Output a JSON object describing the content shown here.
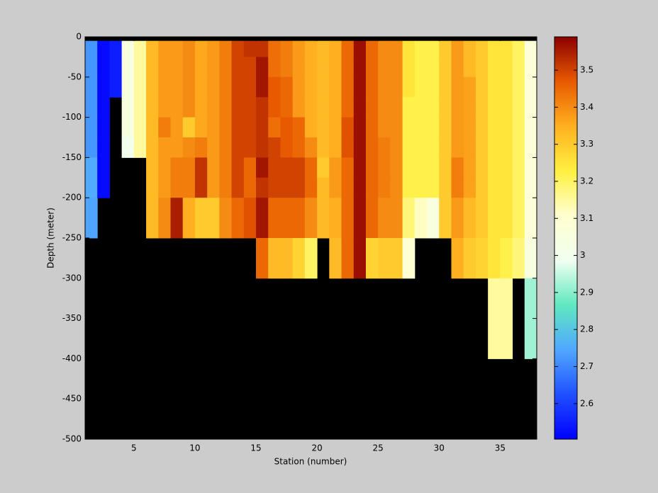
{
  "chart_data": {
    "type": "heatmap",
    "xlabel": "Station (number)",
    "ylabel": "Depth (meter)",
    "x": [
      1,
      2,
      3,
      4,
      5,
      6,
      7,
      8,
      9,
      10,
      11,
      12,
      13,
      14,
      15,
      16,
      17,
      18,
      19,
      20,
      21,
      22,
      23,
      24,
      25,
      26,
      27,
      28,
      29,
      30,
      31,
      32,
      33,
      34,
      35,
      36,
      37,
      38
    ],
    "depths": [
      0,
      -5,
      -25,
      -50,
      -75,
      -100,
      -125,
      -150,
      -175,
      -200,
      -250,
      -300,
      -400,
      -500
    ],
    "xlim": [
      1,
      38
    ],
    "ylim": [
      -500,
      0
    ],
    "xticks": [
      5,
      10,
      15,
      20,
      25,
      30,
      35
    ],
    "yticks": [
      0,
      -50,
      -100,
      -150,
      -200,
      -250,
      -300,
      -350,
      -400,
      -450,
      -500
    ],
    "clim": [
      2.504,
      3.59
    ],
    "cticks": [
      2.6,
      2.7,
      2.8,
      2.9,
      3,
      3.1,
      3.2,
      3.3,
      3.4,
      3.5
    ],
    "colormap": [
      "#0000ff",
      "#2050ff",
      "#50a8ff",
      "#60e8c0",
      "#f0fff0",
      "#ffffd0",
      "#fff040",
      "#ffb020",
      "#e85a00",
      "#8b0000"
    ],
    "missing_color": "#000000",
    "values": [
      [
        null,
        2.72,
        2.72,
        2.72,
        2.72,
        2.72,
        2.72,
        2.75,
        2.75,
        2.74,
        null,
        null,
        null
      ],
      [
        null,
        2.52,
        2.52,
        2.52,
        2.52,
        2.52,
        2.52,
        2.52,
        2.52,
        null,
        null,
        null,
        null
      ],
      [
        null,
        2.55,
        2.55,
        2.55,
        null,
        null,
        null,
        null,
        null,
        null,
        null,
        null,
        null
      ],
      [
        null,
        3.05,
        3.05,
        3.05,
        3.05,
        3.05,
        3.0,
        null,
        null,
        null,
        null,
        null,
        null
      ],
      [
        null,
        3.15,
        3.15,
        3.15,
        3.15,
        3.15,
        3.15,
        null,
        null,
        null,
        null,
        null,
        null
      ],
      [
        null,
        3.33,
        3.33,
        3.33,
        3.33,
        3.33,
        3.33,
        3.33,
        3.33,
        3.33,
        null,
        null,
        null
      ],
      [
        null,
        3.38,
        3.38,
        3.38,
        3.38,
        3.42,
        3.38,
        3.38,
        3.38,
        3.4,
        null,
        null,
        null
      ],
      [
        null,
        3.38,
        3.38,
        3.38,
        3.38,
        3.38,
        3.38,
        3.42,
        3.42,
        3.55,
        null,
        null,
        null
      ],
      [
        null,
        3.4,
        3.4,
        3.4,
        3.4,
        3.3,
        3.4,
        3.42,
        3.42,
        3.35,
        null,
        null,
        null
      ],
      [
        null,
        3.36,
        3.36,
        3.36,
        3.36,
        3.36,
        3.42,
        3.52,
        3.52,
        3.3,
        null,
        null,
        null
      ],
      [
        null,
        3.38,
        3.38,
        3.38,
        3.38,
        3.38,
        3.38,
        3.38,
        3.38,
        3.3,
        null,
        null,
        null
      ],
      [
        null,
        3.42,
        3.42,
        3.42,
        3.42,
        3.42,
        3.42,
        3.42,
        3.42,
        3.4,
        null,
        null,
        null
      ],
      [
        null,
        3.5,
        3.5,
        3.5,
        3.5,
        3.5,
        3.5,
        3.5,
        3.5,
        3.45,
        null,
        null,
        null
      ],
      [
        null,
        3.52,
        3.5,
        3.5,
        3.5,
        3.5,
        3.5,
        3.45,
        3.45,
        3.48,
        null,
        null,
        null
      ],
      [
        null,
        3.52,
        3.56,
        3.56,
        3.52,
        3.52,
        3.52,
        3.56,
        3.52,
        3.56,
        3.45,
        null,
        null
      ],
      [
        null,
        3.44,
        3.44,
        3.47,
        3.47,
        3.44,
        3.5,
        3.5,
        3.5,
        3.45,
        3.33,
        null,
        null
      ],
      [
        null,
        3.42,
        3.42,
        3.45,
        3.45,
        3.47,
        3.47,
        3.5,
        3.5,
        3.45,
        3.33,
        null,
        null
      ],
      [
        null,
        3.38,
        3.38,
        3.38,
        3.38,
        3.45,
        3.45,
        3.5,
        3.5,
        3.45,
        3.28,
        null,
        null
      ],
      [
        null,
        3.35,
        3.35,
        3.35,
        3.35,
        3.35,
        3.4,
        3.45,
        3.45,
        3.4,
        3.2,
        null,
        null
      ],
      [
        null,
        3.33,
        3.33,
        3.33,
        3.33,
        3.33,
        3.33,
        3.3,
        3.33,
        3.33,
        null,
        null,
        null
      ],
      [
        null,
        3.35,
        3.35,
        3.35,
        3.35,
        3.35,
        3.35,
        3.38,
        3.38,
        3.35,
        3.33,
        null,
        null
      ],
      [
        null,
        3.45,
        3.45,
        3.45,
        3.45,
        3.48,
        3.48,
        3.45,
        3.45,
        3.45,
        3.45,
        null,
        null
      ],
      [
        null,
        3.57,
        3.57,
        3.57,
        3.57,
        3.57,
        3.57,
        3.57,
        3.57,
        3.57,
        3.57,
        null,
        null
      ],
      [
        null,
        3.45,
        3.45,
        3.45,
        3.45,
        3.45,
        3.45,
        3.45,
        3.45,
        3.45,
        3.28,
        null,
        null
      ],
      [
        null,
        3.4,
        3.4,
        3.4,
        3.4,
        3.4,
        3.42,
        3.42,
        3.42,
        3.4,
        3.3,
        null,
        null
      ],
      [
        null,
        3.4,
        3.4,
        3.4,
        3.4,
        3.4,
        3.4,
        3.4,
        3.4,
        3.4,
        3.3,
        null,
        null
      ],
      [
        null,
        3.25,
        3.25,
        3.25,
        3.22,
        3.22,
        3.22,
        3.22,
        3.22,
        3.18,
        3.1,
        null,
        null
      ],
      [
        null,
        3.22,
        3.22,
        3.22,
        3.22,
        3.22,
        3.22,
        3.22,
        3.22,
        3.12,
        null,
        null,
        null
      ],
      [
        null,
        3.22,
        3.22,
        3.22,
        3.22,
        3.22,
        3.22,
        3.22,
        3.22,
        3.05,
        null,
        null,
        null
      ],
      [
        null,
        3.3,
        3.3,
        3.3,
        3.3,
        3.3,
        3.3,
        3.3,
        3.3,
        3.3,
        null,
        null,
        null
      ],
      [
        null,
        3.38,
        3.38,
        3.38,
        3.38,
        3.38,
        3.38,
        3.42,
        3.42,
        3.38,
        3.35,
        null,
        null
      ],
      [
        null,
        3.33,
        3.33,
        3.37,
        3.37,
        3.37,
        3.37,
        3.37,
        3.37,
        3.33,
        3.3,
        null,
        null
      ],
      [
        null,
        3.3,
        3.3,
        3.3,
        3.3,
        3.3,
        3.3,
        3.3,
        3.3,
        3.3,
        3.28,
        null,
        null
      ],
      [
        null,
        3.25,
        3.25,
        3.25,
        3.25,
        3.25,
        3.25,
        3.25,
        3.25,
        3.25,
        3.25,
        3.15,
        null
      ],
      [
        null,
        3.25,
        3.25,
        3.25,
        3.25,
        3.25,
        3.25,
        3.25,
        3.25,
        3.25,
        3.22,
        3.15,
        null
      ],
      [
        null,
        3.2,
        3.2,
        3.2,
        3.2,
        3.2,
        3.2,
        3.2,
        3.2,
        3.2,
        3.18,
        null,
        null
      ],
      [
        null,
        3.08,
        3.08,
        3.08,
        3.08,
        3.08,
        3.08,
        3.08,
        3.08,
        3.08,
        3.05,
        2.92,
        null
      ]
    ]
  }
}
